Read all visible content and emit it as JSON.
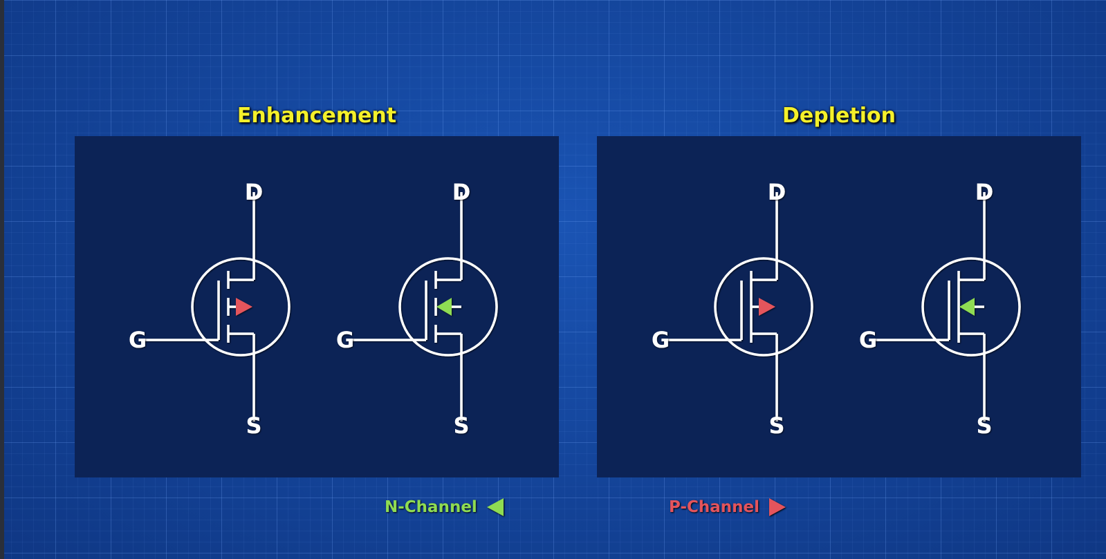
{
  "sections": [
    {
      "title": "Enhancement"
    },
    {
      "title": "Depletion"
    }
  ],
  "terminals": {
    "drain": "D",
    "gate": "G",
    "source": "S"
  },
  "colors": {
    "n_channel": "#8fdc52",
    "p_channel": "#e4545c",
    "title": "#f4f02a",
    "wire": "#ffffff"
  },
  "legend": {
    "n_channel": {
      "label": "N-Channel",
      "icon": "left-triangle-icon"
    },
    "p_channel": {
      "label": "P-Channel",
      "icon": "right-triangle-icon"
    }
  }
}
